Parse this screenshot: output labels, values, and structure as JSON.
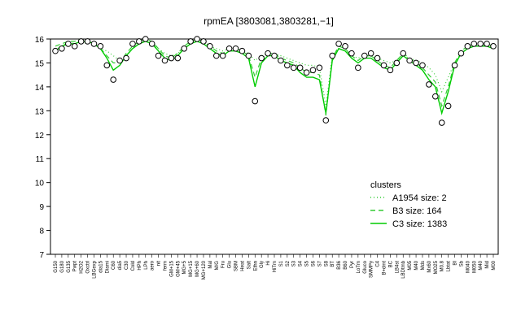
{
  "chart_data": {
    "type": "line",
    "title": "rpmEA [3803081,3803281,−1]",
    "xlabel": "",
    "ylabel": "",
    "ylim": [
      7,
      16
    ],
    "y_ticks": [
      7,
      8,
      9,
      10,
      11,
      12,
      13,
      14,
      15,
      16
    ],
    "categories": [
      "G150",
      "G180",
      "G135",
      "Pwpt",
      "H2O2",
      "Oxctrl",
      "LBGexp",
      "dia15",
      "Diami",
      "C60",
      "dia5",
      "C30",
      "Cold",
      "HPh",
      "LPh",
      "aero",
      "nit",
      "ferm",
      "GM+15",
      "GM+45",
      "MG+5",
      "MG+15",
      "MG+60",
      "MG+120",
      "Mal",
      "M/G",
      "Fru",
      "Glu",
      "SBM",
      "Heat",
      "Salt",
      "Ethn",
      "Gly",
      "Hi",
      "HiTm",
      "S1",
      "S2",
      "S3",
      "S4",
      "S5",
      "S6",
      "S7",
      "S8",
      "BT",
      "B36",
      "B60",
      "Pyr",
      "LoTm",
      "Gluco",
      "SMMPy",
      "C4",
      "B+dmt",
      "BC",
      "LB4st",
      "LBDtmb",
      "M05",
      "M40",
      "Mds",
      "Mx60",
      "MO25",
      "M0.8",
      "Lbtat",
      "BI",
      "Sb",
      "M040",
      "M050",
      "M40",
      "Mid",
      "M00"
    ],
    "series": [
      {
        "name": "A1954 size: 2",
        "style": "dotted",
        "color": "#33cc33",
        "values": [
          15.6,
          15.7,
          15.9,
          15.8,
          15.9,
          15.8,
          15.8,
          15.6,
          15.5,
          15.3,
          15.1,
          15.3,
          15.6,
          15.8,
          15.9,
          15.8,
          15.6,
          15.4,
          15.3,
          15.4,
          15.6,
          15.8,
          15.9,
          15.8,
          15.7,
          15.6,
          15.5,
          15.6,
          15.6,
          15.5,
          15.4,
          15.1,
          15.3,
          15.4,
          15.4,
          15.3,
          15.2,
          15.1,
          15.0,
          14.9,
          14.9,
          14.8,
          13.2,
          15.3,
          15.6,
          15.5,
          15.3,
          15.2,
          15.3,
          15.3,
          15.2,
          15.1,
          15.0,
          15.1,
          15.3,
          15.2,
          15.1,
          15.0,
          14.8,
          14.5,
          13.8,
          14.4,
          15.0,
          15.4,
          15.6,
          15.7,
          15.7,
          15.8,
          15.7
        ]
      },
      {
        "name": "B3 size: 164",
        "style": "dashed",
        "color": "#33cc33",
        "values": [
          15.7,
          15.8,
          15.9,
          15.9,
          16.0,
          15.9,
          15.8,
          15.6,
          15.3,
          15.0,
          15.0,
          15.4,
          15.7,
          15.9,
          16.0,
          15.9,
          15.6,
          15.3,
          15.2,
          15.4,
          15.7,
          15.9,
          16.0,
          15.9,
          15.7,
          15.5,
          15.4,
          15.6,
          15.6,
          15.5,
          15.3,
          14.4,
          15.2,
          15.4,
          15.4,
          15.2,
          15.1,
          15.0,
          14.8,
          14.6,
          14.6,
          14.5,
          12.8,
          15.2,
          15.7,
          15.6,
          15.3,
          15.1,
          15.3,
          15.3,
          15.1,
          14.9,
          14.8,
          15.1,
          15.4,
          15.2,
          15.0,
          14.8,
          14.5,
          14.2,
          13.2,
          14.0,
          15.0,
          15.5,
          15.7,
          15.8,
          15.8,
          15.8,
          15.7
        ]
      },
      {
        "name": "C3 size: 1383",
        "style": "solid",
        "color": "#00cc00",
        "values": [
          15.5,
          15.7,
          15.8,
          15.8,
          15.9,
          15.9,
          15.8,
          15.6,
          15.2,
          14.7,
          14.9,
          15.3,
          15.6,
          15.8,
          15.9,
          15.8,
          15.5,
          15.2,
          15.1,
          15.3,
          15.6,
          15.8,
          15.9,
          15.8,
          15.6,
          15.4,
          15.3,
          15.5,
          15.5,
          15.4,
          15.2,
          14.0,
          15.0,
          15.3,
          15.3,
          15.1,
          15.0,
          14.9,
          14.6,
          14.4,
          14.4,
          14.3,
          12.9,
          15.1,
          15.6,
          15.5,
          15.2,
          15.0,
          15.2,
          15.2,
          15.0,
          14.8,
          14.7,
          15.0,
          15.3,
          15.1,
          14.9,
          14.7,
          14.3,
          14.0,
          12.9,
          13.8,
          14.9,
          15.4,
          15.6,
          15.7,
          15.7,
          15.7,
          15.6
        ]
      }
    ],
    "points": [
      15.5,
      15.6,
      15.8,
      15.7,
      15.9,
      15.9,
      15.8,
      15.7,
      14.9,
      14.3,
      15.1,
      15.2,
      15.8,
      15.9,
      16.0,
      15.8,
      15.3,
      15.1,
      15.2,
      15.2,
      15.6,
      15.9,
      16.0,
      15.9,
      15.7,
      15.3,
      15.3,
      15.6,
      15.6,
      15.5,
      15.3,
      13.4,
      15.2,
      15.4,
      15.3,
      15.1,
      14.9,
      14.8,
      14.8,
      14.6,
      14.7,
      14.8,
      12.6,
      15.3,
      15.8,
      15.7,
      15.4,
      14.8,
      15.3,
      15.4,
      15.2,
      14.9,
      14.7,
      15.0,
      15.4,
      15.1,
      15.0,
      14.9,
      14.1,
      13.6,
      12.5,
      13.2,
      14.9,
      15.4,
      15.7,
      15.8,
      15.8,
      15.8,
      15.7
    ],
    "legend": {
      "title": "clusters",
      "placement": "bottom-right",
      "entries": [
        "A1954 size: 2",
        "B3 size: 164",
        "C3 size: 1383"
      ]
    },
    "grid": false
  }
}
